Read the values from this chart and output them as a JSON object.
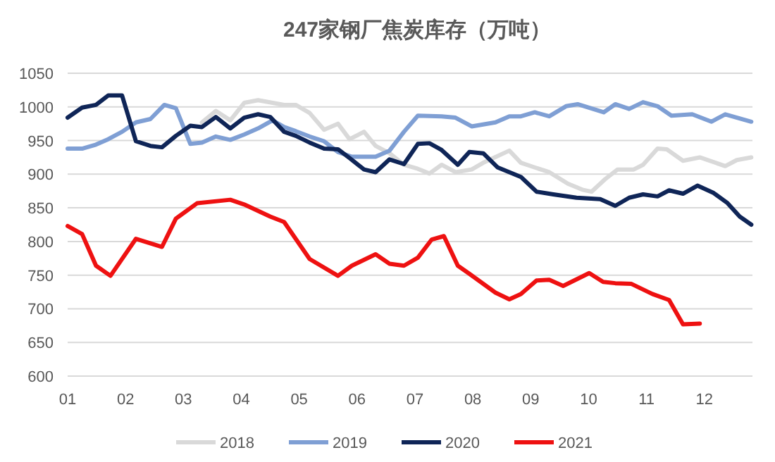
{
  "chart_data": {
    "type": "line",
    "title": "247家钢厂焦炭库存（万吨）",
    "xlim": [
      1,
      12.83
    ],
    "xticks": [
      {
        "value": 1,
        "label": "01"
      },
      {
        "value": 2,
        "label": "02"
      },
      {
        "value": 3,
        "label": "03"
      },
      {
        "value": 4,
        "label": "04"
      },
      {
        "value": 5,
        "label": "05"
      },
      {
        "value": 6,
        "label": "06"
      },
      {
        "value": 7,
        "label": "07"
      },
      {
        "value": 8,
        "label": "08"
      },
      {
        "value": 9,
        "label": "09"
      },
      {
        "value": 10,
        "label": "10"
      },
      {
        "value": 11,
        "label": "11"
      },
      {
        "value": 12,
        "label": "12"
      }
    ],
    "ylim": [
      600,
      1050
    ],
    "yticks": [
      600,
      650,
      700,
      750,
      800,
      850,
      900,
      950,
      1000,
      1050
    ],
    "grid": "y",
    "legend": "bottom",
    "series": [
      {
        "name": "2018",
        "color": "#d9d9d9",
        "x": [
          3.32,
          3.56,
          3.81,
          4.05,
          4.29,
          4.54,
          4.74,
          4.94,
          5.18,
          5.43,
          5.67,
          5.87,
          6.12,
          6.32,
          6.56,
          6.81,
          7.05,
          7.25,
          7.46,
          7.7,
          7.98,
          8.18,
          8.63,
          8.83,
          9.07,
          9.32,
          9.64,
          9.89,
          10.05,
          10.29,
          10.5,
          10.78,
          10.94,
          11.19,
          11.35,
          11.63,
          11.92,
          12.36,
          12.56,
          12.81
        ],
        "values": [
          977,
          994,
          980,
          1006,
          1010,
          1006,
          1003,
          1003,
          991,
          966,
          975,
          952,
          963,
          942,
          931,
          914,
          908,
          901,
          914,
          903,
          907,
          917,
          935,
          917,
          910,
          903,
          886,
          877,
          874,
          893,
          907,
          907,
          914,
          938,
          937,
          920,
          925,
          912,
          921,
          925
        ]
      },
      {
        "name": "2019",
        "color": "#7f9fd4",
        "x": [
          1,
          1.25,
          1.49,
          1.7,
          1.94,
          2.18,
          2.43,
          2.67,
          2.87,
          3.12,
          3.32,
          3.56,
          3.81,
          4.05,
          4.29,
          4.54,
          4.74,
          4.94,
          5.18,
          5.43,
          5.67,
          5.91,
          6.32,
          6.56,
          6.81,
          7.05,
          7.46,
          7.7,
          7.98,
          8.39,
          8.63,
          8.83,
          9.07,
          9.32,
          9.61,
          9.81,
          10.26,
          10.46,
          10.7,
          10.94,
          11.19,
          11.43,
          11.79,
          12.12,
          12.36,
          12.81
        ],
        "values": [
          938,
          938,
          944,
          952,
          963,
          977,
          982,
          1003,
          998,
          945,
          947,
          956,
          951,
          959,
          968,
          980,
          970,
          964,
          956,
          949,
          933,
          926,
          926,
          935,
          963,
          987,
          986,
          984,
          971,
          977,
          986,
          986,
          992,
          986,
          1001,
          1004,
          992,
          1004,
          997,
          1007,
          1001,
          987,
          989,
          978,
          989,
          978
        ]
      },
      {
        "name": "2020",
        "color": "#0f2557",
        "x": [
          1,
          1.25,
          1.49,
          1.7,
          1.94,
          2.18,
          2.43,
          2.63,
          2.87,
          3.12,
          3.32,
          3.56,
          3.81,
          4.05,
          4.29,
          4.5,
          4.74,
          4.94,
          5.18,
          5.43,
          5.67,
          5.87,
          6.12,
          6.32,
          6.56,
          6.81,
          7.05,
          7.25,
          7.46,
          7.74,
          7.94,
          8.18,
          8.43,
          8.83,
          9.1,
          9.39,
          9.79,
          10.2,
          10.46,
          10.7,
          10.94,
          11.19,
          11.39,
          11.63,
          11.88,
          12.16,
          12.4,
          12.61,
          12.81
        ],
        "values": [
          984,
          999,
          1003,
          1017,
          1017,
          949,
          942,
          940,
          957,
          972,
          970,
          985,
          968,
          984,
          989,
          985,
          963,
          957,
          947,
          938,
          937,
          924,
          907,
          903,
          922,
          915,
          945,
          946,
          936,
          914,
          933,
          931,
          910,
          896,
          874,
          870,
          865,
          863,
          853,
          865,
          870,
          867,
          876,
          871,
          883,
          872,
          857,
          837,
          825
        ]
      },
      {
        "name": "2021",
        "color": "#ee1111",
        "x": [
          1,
          1.25,
          1.49,
          1.74,
          2.18,
          2.63,
          2.87,
          3.24,
          3.81,
          4.05,
          4.5,
          4.74,
          5.18,
          5.67,
          5.91,
          6.32,
          6.56,
          6.81,
          7.05,
          7.29,
          7.5,
          7.74,
          7.94,
          8.39,
          8.63,
          8.83,
          9.1,
          9.32,
          9.56,
          10.01,
          10.25,
          10.46,
          10.74,
          11.1,
          11.39,
          11.63,
          11.92
        ],
        "values": [
          823,
          811,
          764,
          749,
          804,
          792,
          834,
          857,
          862,
          855,
          837,
          829,
          774,
          749,
          764,
          781,
          767,
          764,
          776,
          803,
          808,
          764,
          752,
          724,
          714,
          722,
          742,
          743,
          734,
          753,
          740,
          738,
          737,
          722,
          713,
          677,
          678
        ]
      }
    ]
  }
}
